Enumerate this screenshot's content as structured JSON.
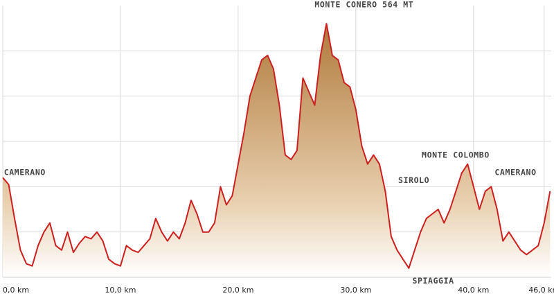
{
  "chart_data": {
    "type": "area",
    "title": "",
    "xlabel": "",
    "ylabel": "",
    "x_unit": "km",
    "xlim": [
      0,
      46.6
    ],
    "x_ticks": [
      {
        "value": 0,
        "label": "0,0 km"
      },
      {
        "value": 10,
        "label": "10,0 km"
      },
      {
        "value": 20,
        "label": "20,0 km"
      },
      {
        "value": 30,
        "label": "30,0 km"
      },
      {
        "value": 40,
        "label": "40,0 km"
      },
      {
        "value": 46,
        "label": "46,0 km"
      }
    ],
    "ylim": [
      0,
      600
    ],
    "grid": true,
    "colors": {
      "line": "#cc1f1f",
      "fill_top": "#b07a3c",
      "fill_bottom": "#ffffff",
      "grid": "#d9d9d9"
    },
    "series": [
      {
        "name": "",
        "x": [
          0,
          0.5,
          1.0,
          1.5,
          2.0,
          2.5,
          3.0,
          3.5,
          4.0,
          4.5,
          5.0,
          5.5,
          6.0,
          6.5,
          7.0,
          7.5,
          8.0,
          8.5,
          9.0,
          9.5,
          10.0,
          10.5,
          11.0,
          11.5,
          12.0,
          12.5,
          13.0,
          13.5,
          14.0,
          14.5,
          15.0,
          15.5,
          16.0,
          16.5,
          17.0,
          17.5,
          18.0,
          18.5,
          19.0,
          19.5,
          20.0,
          20.5,
          21.0,
          21.5,
          22.0,
          22.5,
          23.0,
          23.5,
          24.0,
          24.5,
          25.0,
          25.5,
          26.0,
          26.5,
          27.0,
          27.5,
          28.0,
          28.5,
          29.0,
          29.5,
          30.0,
          30.5,
          31.0,
          31.5,
          32.0,
          32.5,
          33.0,
          33.5,
          34.0,
          34.5,
          35.0,
          35.5,
          36.0,
          36.5,
          37.0,
          37.5,
          38.0,
          38.5,
          39.0,
          39.5,
          40.0,
          40.5,
          41.0,
          41.5,
          42.0,
          42.5,
          43.0,
          43.5,
          44.0,
          44.5,
          45.0,
          45.5,
          46.0,
          46.5
        ],
        "y": [
          220,
          205,
          130,
          60,
          30,
          25,
          70,
          100,
          120,
          70,
          60,
          100,
          55,
          75,
          90,
          85,
          100,
          80,
          40,
          30,
          25,
          70,
          60,
          55,
          70,
          85,
          130,
          100,
          80,
          100,
          85,
          120,
          170,
          140,
          100,
          100,
          120,
          200,
          160,
          180,
          250,
          320,
          400,
          440,
          480,
          490,
          460,
          380,
          270,
          260,
          280,
          440,
          410,
          380,
          490,
          560,
          490,
          480,
          430,
          420,
          370,
          290,
          250,
          270,
          250,
          190,
          90,
          60,
          40,
          20,
          60,
          100,
          130,
          140,
          150,
          120,
          150,
          190,
          230,
          250,
          200,
          150,
          190,
          200,
          150,
          80,
          100,
          80,
          60,
          50,
          60,
          70,
          120,
          190
        ]
      }
    ],
    "annotations": [
      {
        "text": "CAMERANO",
        "x": 0.1,
        "y": 226
      },
      {
        "text": "MONTE CONERO 564 MT",
        "x": 26.5,
        "y": 596
      },
      {
        "text": "SIROLO",
        "x": 33.6,
        "y": 208
      },
      {
        "text": "SPIAGGIA",
        "x": 34.8,
        "y": -14
      },
      {
        "text": "MONTE COLOMBO",
        "x": 35.6,
        "y": 264
      },
      {
        "text": "CAMERANO",
        "x": 41.8,
        "y": 226
      }
    ]
  }
}
